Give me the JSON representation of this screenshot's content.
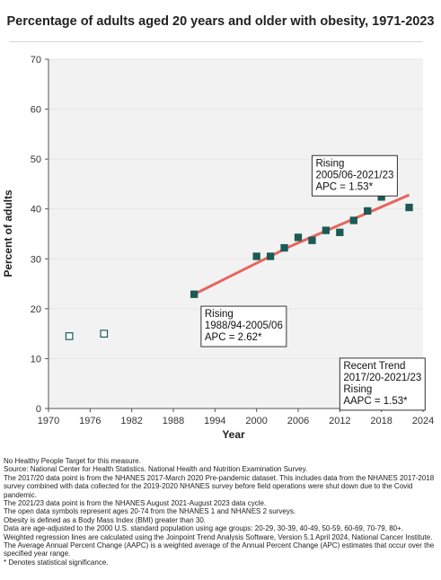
{
  "title": "Percentage of adults aged 20 years and older with obesity, 1971-2023",
  "chart_data": {
    "type": "scatter",
    "title": "Percentage of adults aged 20 years and older with obesity, 1971-2023",
    "xlabel": "Year",
    "ylabel": "Percent of adults",
    "xlim": [
      1970,
      2024
    ],
    "ylim": [
      0,
      70
    ],
    "x_ticks": [
      1970,
      1976,
      1982,
      1988,
      1994,
      2000,
      2006,
      2012,
      2018,
      2024
    ],
    "y_ticks": [
      0,
      10,
      20,
      30,
      40,
      50,
      60,
      70
    ],
    "grid": "horizontal",
    "series": [
      {
        "marker": "open-square",
        "points": [
          {
            "x": 1973,
            "y": 14.5
          },
          {
            "x": 1978,
            "y": 15.0
          }
        ]
      },
      {
        "marker": "filled-square",
        "points": [
          {
            "x": 1991,
            "y": 22.9
          },
          {
            "x": 2000,
            "y": 30.5
          },
          {
            "x": 2002,
            "y": 30.5
          },
          {
            "x": 2004,
            "y": 32.2
          },
          {
            "x": 2006,
            "y": 34.3
          },
          {
            "x": 2008,
            "y": 33.7
          },
          {
            "x": 2010,
            "y": 35.7
          },
          {
            "x": 2012,
            "y": 35.3
          },
          {
            "x": 2014,
            "y": 37.7
          },
          {
            "x": 2016,
            "y": 39.6
          },
          {
            "x": 2018,
            "y": 42.4
          },
          {
            "x": 2022,
            "y": 40.3
          }
        ]
      }
    ],
    "trend_lines": [
      {
        "x_start": 1991,
        "y_start": 22.9,
        "x_end": 2005,
        "y_end": 32.6
      },
      {
        "x_start": 2005,
        "y_start": 32.6,
        "x_end": 2022,
        "y_end": 42.8
      }
    ],
    "annotations": [
      {
        "lines": [
          "Rising",
          "1988/94-2005/06",
          "APC =  2.62*"
        ],
        "x": 1992,
        "y": 20.5
      },
      {
        "lines": [
          "Rising",
          "2005/06-2021/23",
          "APC =  1.53*"
        ],
        "x": 2008,
        "y": 50.7
      },
      {
        "lines": [
          "Recent Trend",
          "2017/20-2021/23",
          "Rising",
          "AAPC =  1.53*"
        ],
        "x": 2012,
        "y": 10.1
      }
    ],
    "colors": {
      "marker": "#1b5b54",
      "trend": "#e8655d",
      "grid": "#e6e6e6",
      "plot_bg": "#f2f2f2"
    }
  },
  "notes": [
    "No Healthy People Target for this measure.",
    "Source: National Center for Health Statistics. National Health and Nutrition Examination Survey.",
    "The 2017/20 data point is from the NHANES 2017-March 2020 Pre-pandemic dataset. This includes data from the NHANES 2017-2018 survey combined with data collected for the 2019-2020 NHANES survey before field operations were shut down due to the Covid pandemic.",
    "The 2021/23 data point is from the NHANES August 2021-August 2023 data cycle.",
    "The open data symbols represent ages 20-74 from the NHANES 1 and NHANES 2 surveys.",
    "Obesity is defined as a Body Mass Index (BMI) greater than 30.",
    "Data are age-adjusted to the 2000 U.S. standard population using age groups: 20-29, 30-39, 40-49, 50-59, 60-69, 70-79, 80+.",
    "Weighted regression lines are calculated using the Joinpoint Trend Analysis Software, Version 5.1 April 2024, National Cancer Institute.",
    "The Average Annual Percent Change (AAPC) is a weighted average of the Annual Percent Change (APC) estimates that occur over the specified year range.",
    "* Denotes statistical significance."
  ]
}
